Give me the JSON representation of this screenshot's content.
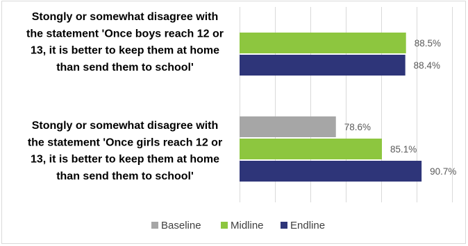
{
  "chart_data": {
    "type": "bar",
    "orientation": "horizontal",
    "categories": [
      [
        "Stongly or somewhat disagree with",
        "the statement 'Once boys reach 12 or",
        "13, it is better to keep them at home",
        "than send them to school'"
      ],
      [
        "Stongly or somewhat disagree with",
        "the statement 'Once girls reach 12 or",
        "13, it is better to keep them at home",
        "than send them to school'"
      ]
    ],
    "series": [
      {
        "name": "Baseline",
        "color": "#a6a6a6",
        "values": [
          null,
          78.6
        ],
        "labels": [
          null,
          "78.6%"
        ]
      },
      {
        "name": "Midline",
        "color": "#8dc63f",
        "values": [
          88.5,
          85.1
        ],
        "labels": [
          "88.5%",
          "85.1%"
        ]
      },
      {
        "name": "Endline",
        "color": "#2e3579",
        "values": [
          88.4,
          90.7
        ],
        "labels": [
          "88.4%",
          "90.7%"
        ]
      }
    ],
    "xlim": [
      65,
      95
    ],
    "grid": true,
    "legend": "bottom",
    "title": "",
    "xlabel": "",
    "ylabel": ""
  }
}
